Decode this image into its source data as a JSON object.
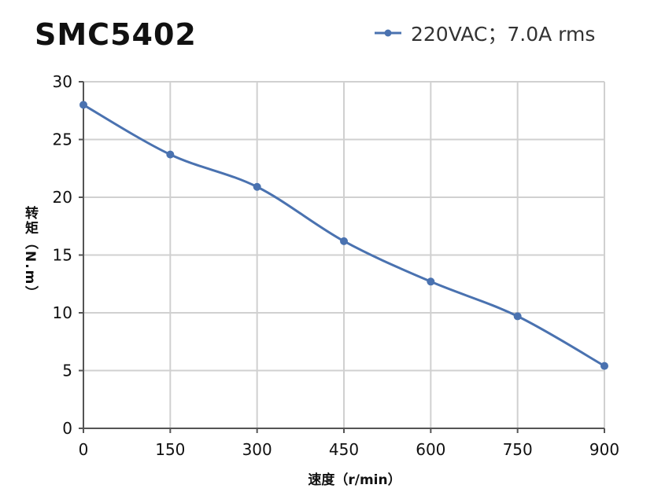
{
  "chart_data": {
    "type": "line",
    "title": "SMC5402",
    "xlabel": "速度（r/min）",
    "ylabel": "转矩（N.m）",
    "x": [
      0,
      150,
      300,
      450,
      600,
      750,
      900
    ],
    "series": [
      {
        "name": "220VAC；7.0A rms",
        "values": [
          28,
          23.7,
          20.9,
          16.2,
          12.7,
          9.7,
          5.4
        ],
        "color": "#4a72b0"
      }
    ],
    "xlim": [
      0,
      900
    ],
    "ylim": [
      0,
      30
    ],
    "xticks": [
      "0",
      "150",
      "300",
      "450",
      "600",
      "750",
      "900"
    ],
    "yticks": [
      "0",
      "5",
      "10",
      "15",
      "20",
      "25",
      "30"
    ],
    "grid": true,
    "legend_position": "top-right",
    "smooth": true
  }
}
